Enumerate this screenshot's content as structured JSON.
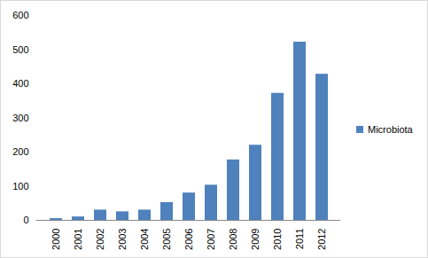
{
  "chart_data": {
    "type": "bar",
    "categories": [
      "2000",
      "2001",
      "2002",
      "2003",
      "2004",
      "2005",
      "2006",
      "2007",
      "2008",
      "2009",
      "2010",
      "2011",
      "2012"
    ],
    "series": [
      {
        "name": "Microbiota",
        "color": "#4f81bd",
        "values": [
          5,
          10,
          30,
          25,
          30,
          52,
          80,
          103,
          177,
          220,
          372,
          522,
          428
        ]
      }
    ],
    "ylim": [
      0,
      600
    ],
    "yticks": [
      0,
      100,
      200,
      300,
      400,
      500,
      600
    ],
    "grid": false,
    "legend": "right"
  }
}
